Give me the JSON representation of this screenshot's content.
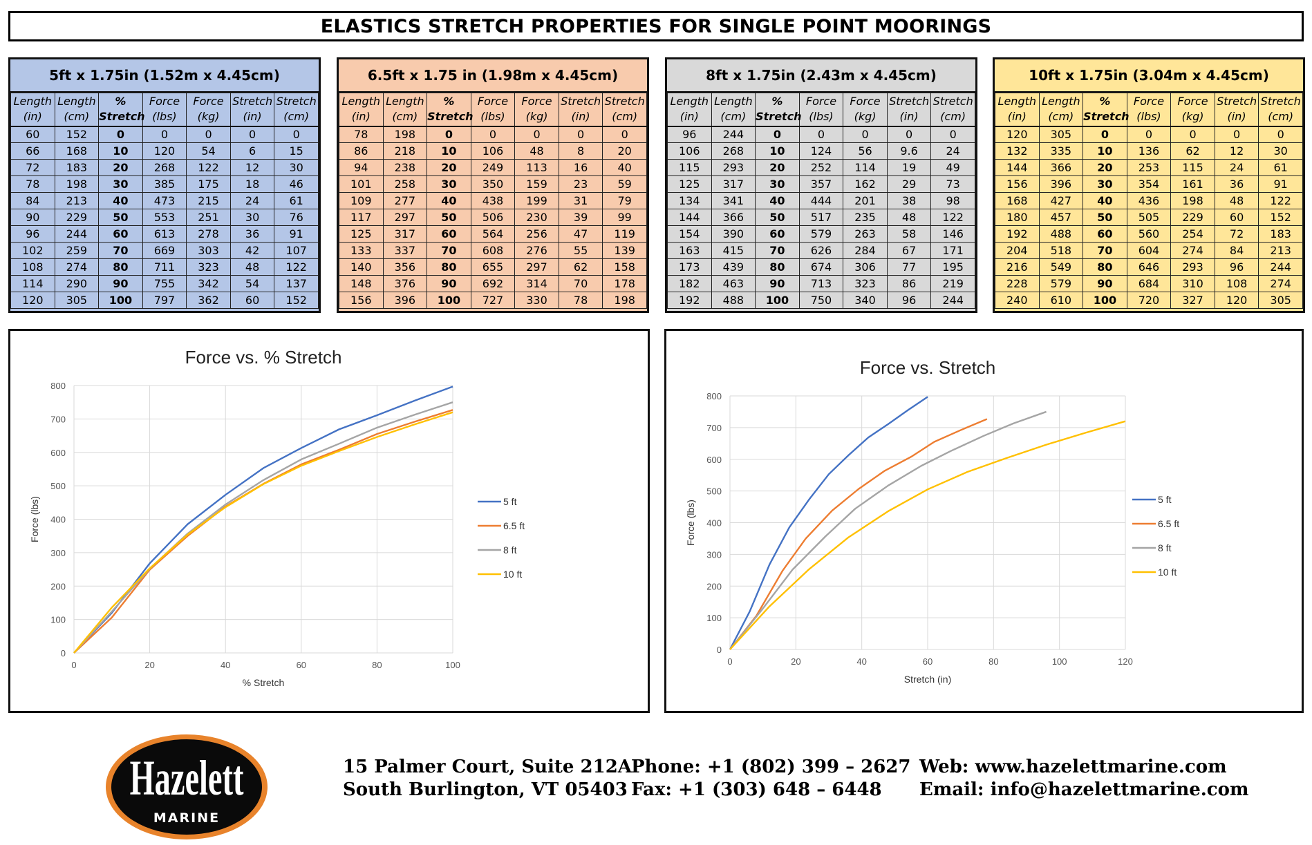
{
  "title": "ELASTICS STRETCH PROPERTIES FOR SINGLE POINT MOORINGS",
  "columns": [
    {
      "l1": "Length",
      "l2": "(in)",
      "bold": false
    },
    {
      "l1": "Length",
      "l2": "(cm)",
      "bold": false
    },
    {
      "l1": "%",
      "l2": "Stretch",
      "bold": true
    },
    {
      "l1": "Force",
      "l2": "(lbs)",
      "bold": false
    },
    {
      "l1": "Force",
      "l2": "(kg)",
      "bold": false
    },
    {
      "l1": "Stretch",
      "l2": "(in)",
      "bold": false
    },
    {
      "l1": "Stretch",
      "l2": "(cm)",
      "bold": false
    }
  ],
  "tables": [
    {
      "heading": "5ft x 1.75in (1.52m x 4.45cm)",
      "color": "#b4c6e7",
      "rows": [
        [
          "60",
          "152",
          "0",
          "0",
          "0",
          "0",
          "0"
        ],
        [
          "66",
          "168",
          "10",
          "120",
          "54",
          "6",
          "15"
        ],
        [
          "72",
          "183",
          "20",
          "268",
          "122",
          "12",
          "30"
        ],
        [
          "78",
          "198",
          "30",
          "385",
          "175",
          "18",
          "46"
        ],
        [
          "84",
          "213",
          "40",
          "473",
          "215",
          "24",
          "61"
        ],
        [
          "90",
          "229",
          "50",
          "553",
          "251",
          "30",
          "76"
        ],
        [
          "96",
          "244",
          "60",
          "613",
          "278",
          "36",
          "91"
        ],
        [
          "102",
          "259",
          "70",
          "669",
          "303",
          "42",
          "107"
        ],
        [
          "108",
          "274",
          "80",
          "711",
          "323",
          "48",
          "122"
        ],
        [
          "114",
          "290",
          "90",
          "755",
          "342",
          "54",
          "137"
        ],
        [
          "120",
          "305",
          "100",
          "797",
          "362",
          "60",
          "152"
        ]
      ]
    },
    {
      "heading": "6.5ft x 1.75 in (1.98m x 4.45cm)",
      "color": "#f8cbad",
      "rows": [
        [
          "78",
          "198",
          "0",
          "0",
          "0",
          "0",
          "0"
        ],
        [
          "86",
          "218",
          "10",
          "106",
          "48",
          "8",
          "20"
        ],
        [
          "94",
          "238",
          "20",
          "249",
          "113",
          "16",
          "40"
        ],
        [
          "101",
          "258",
          "30",
          "350",
          "159",
          "23",
          "59"
        ],
        [
          "109",
          "277",
          "40",
          "438",
          "199",
          "31",
          "79"
        ],
        [
          "117",
          "297",
          "50",
          "506",
          "230",
          "39",
          "99"
        ],
        [
          "125",
          "317",
          "60",
          "564",
          "256",
          "47",
          "119"
        ],
        [
          "133",
          "337",
          "70",
          "608",
          "276",
          "55",
          "139"
        ],
        [
          "140",
          "356",
          "80",
          "655",
          "297",
          "62",
          "158"
        ],
        [
          "148",
          "376",
          "90",
          "692",
          "314",
          "70",
          "178"
        ],
        [
          "156",
          "396",
          "100",
          "727",
          "330",
          "78",
          "198"
        ]
      ]
    },
    {
      "heading": "8ft x 1.75in (2.43m x 4.45cm)",
      "color": "#d9d9d9",
      "rows": [
        [
          "96",
          "244",
          "0",
          "0",
          "0",
          "0",
          "0"
        ],
        [
          "106",
          "268",
          "10",
          "124",
          "56",
          "9.6",
          "24"
        ],
        [
          "115",
          "293",
          "20",
          "252",
          "114",
          "19",
          "49"
        ],
        [
          "125",
          "317",
          "30",
          "357",
          "162",
          "29",
          "73"
        ],
        [
          "134",
          "341",
          "40",
          "444",
          "201",
          "38",
          "98"
        ],
        [
          "144",
          "366",
          "50",
          "517",
          "235",
          "48",
          "122"
        ],
        [
          "154",
          "390",
          "60",
          "579",
          "263",
          "58",
          "146"
        ],
        [
          "163",
          "415",
          "70",
          "626",
          "284",
          "67",
          "171"
        ],
        [
          "173",
          "439",
          "80",
          "674",
          "306",
          "77",
          "195"
        ],
        [
          "182",
          "463",
          "90",
          "713",
          "323",
          "86",
          "219"
        ],
        [
          "192",
          "488",
          "100",
          "750",
          "340",
          "96",
          "244"
        ]
      ]
    },
    {
      "heading": "10ft x 1.75in (3.04m x 4.45cm)",
      "color": "#ffe699",
      "rows": [
        [
          "120",
          "305",
          "0",
          "0",
          "0",
          "0",
          "0"
        ],
        [
          "132",
          "335",
          "10",
          "136",
          "62",
          "12",
          "30"
        ],
        [
          "144",
          "366",
          "20",
          "253",
          "115",
          "24",
          "61"
        ],
        [
          "156",
          "396",
          "30",
          "354",
          "161",
          "36",
          "91"
        ],
        [
          "168",
          "427",
          "40",
          "436",
          "198",
          "48",
          "122"
        ],
        [
          "180",
          "457",
          "50",
          "505",
          "229",
          "60",
          "152"
        ],
        [
          "192",
          "488",
          "60",
          "560",
          "254",
          "72",
          "183"
        ],
        [
          "204",
          "518",
          "70",
          "604",
          "274",
          "84",
          "213"
        ],
        [
          "216",
          "549",
          "80",
          "646",
          "293",
          "96",
          "244"
        ],
        [
          "228",
          "579",
          "90",
          "684",
          "310",
          "108",
          "274"
        ],
        [
          "240",
          "610",
          "100",
          "720",
          "327",
          "120",
          "305"
        ]
      ]
    }
  ],
  "chart_data": [
    {
      "type": "line",
      "title": "Force vs. % Stretch",
      "xlabel": "% Stretch",
      "ylabel": "Force (lbs)",
      "xlim": [
        0,
        100
      ],
      "ylim": [
        0,
        800
      ],
      "xticks": [
        0,
        20,
        40,
        60,
        80,
        100
      ],
      "yticks": [
        0,
        100,
        200,
        300,
        400,
        500,
        600,
        700,
        800
      ],
      "grid": true,
      "legend": "right",
      "series": [
        {
          "name": "5 ft",
          "color": "#4472c4",
          "x": [
            0,
            10,
            20,
            30,
            40,
            50,
            60,
            70,
            80,
            90,
            100
          ],
          "y": [
            0,
            120,
            268,
            385,
            473,
            553,
            613,
            669,
            711,
            755,
            797
          ]
        },
        {
          "name": "6.5 ft",
          "color": "#ed7d31",
          "x": [
            0,
            10,
            20,
            30,
            40,
            50,
            60,
            70,
            80,
            90,
            100
          ],
          "y": [
            0,
            106,
            249,
            350,
            438,
            506,
            564,
            608,
            655,
            692,
            727
          ]
        },
        {
          "name": "8 ft",
          "color": "#a5a5a5",
          "x": [
            0,
            10,
            20,
            30,
            40,
            50,
            60,
            70,
            80,
            90,
            100
          ],
          "y": [
            0,
            124,
            252,
            357,
            444,
            517,
            579,
            626,
            674,
            713,
            750
          ]
        },
        {
          "name": "10 ft",
          "color": "#ffc000",
          "x": [
            0,
            10,
            20,
            30,
            40,
            50,
            60,
            70,
            80,
            90,
            100
          ],
          "y": [
            0,
            136,
            253,
            354,
            436,
            505,
            560,
            604,
            646,
            684,
            720
          ]
        }
      ]
    },
    {
      "type": "line",
      "title": "Force vs. Stretch",
      "xlabel": "Stretch (in)",
      "ylabel": "Force (lbs)",
      "xlim": [
        0,
        120
      ],
      "ylim": [
        0,
        800
      ],
      "xticks": [
        0,
        20,
        40,
        60,
        80,
        100,
        120
      ],
      "yticks": [
        0,
        100,
        200,
        300,
        400,
        500,
        600,
        700,
        800
      ],
      "grid": true,
      "legend": "right",
      "series": [
        {
          "name": "5 ft",
          "color": "#4472c4",
          "x": [
            0,
            6,
            12,
            18,
            24,
            30,
            36,
            42,
            48,
            54,
            60
          ],
          "y": [
            0,
            120,
            268,
            385,
            473,
            553,
            613,
            669,
            711,
            755,
            797
          ]
        },
        {
          "name": "6.5 ft",
          "color": "#ed7d31",
          "x": [
            0,
            8,
            16,
            23,
            31,
            39,
            47,
            55,
            62,
            70,
            78
          ],
          "y": [
            0,
            106,
            249,
            350,
            438,
            506,
            564,
            608,
            655,
            692,
            727
          ]
        },
        {
          "name": "8 ft",
          "color": "#a5a5a5",
          "x": [
            0,
            9.6,
            19,
            29,
            38,
            48,
            58,
            67,
            77,
            86,
            96
          ],
          "y": [
            0,
            124,
            252,
            357,
            444,
            517,
            579,
            626,
            674,
            713,
            750
          ]
        },
        {
          "name": "10 ft",
          "color": "#ffc000",
          "x": [
            0,
            12,
            24,
            36,
            48,
            60,
            72,
            84,
            96,
            108,
            120
          ],
          "y": [
            0,
            136,
            253,
            354,
            436,
            505,
            560,
            604,
            646,
            684,
            720
          ]
        }
      ]
    }
  ],
  "footer": {
    "logo_text": "Hazelett",
    "logo_sub": "MARINE",
    "address1": "15 Palmer Court, Suite 212A",
    "address2": "South Burlington, VT 05403",
    "phone": "Phone: +1 (802) 399 – 2627",
    "fax": "Fax: +1 (303) 648 – 6448",
    "web": "Web: www.hazelettmarine.com",
    "email": "Email: info@hazelettmarine.com",
    "logo_colors": {
      "ring": "#e8832b",
      "fill": "#0a0a0a",
      "text": "#ffffff"
    }
  }
}
